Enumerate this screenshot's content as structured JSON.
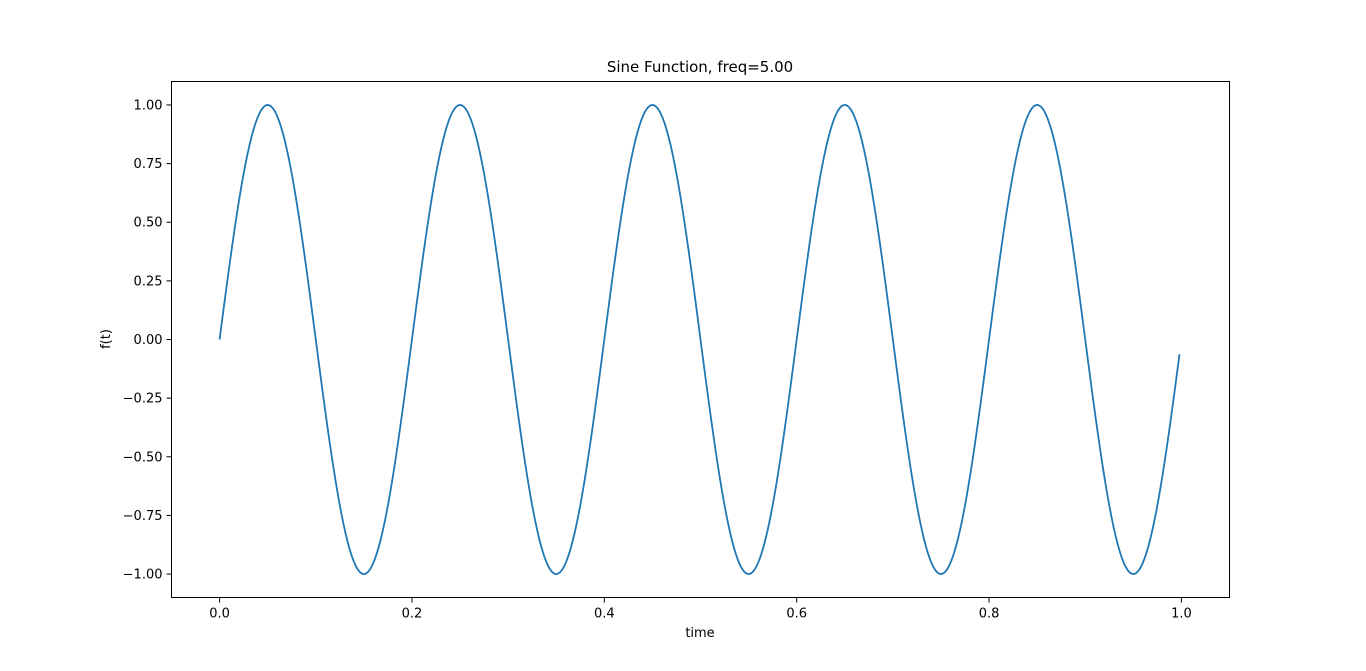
{
  "chart_data": {
    "type": "line",
    "title": "Sine Function, freq=5.00",
    "xlabel": "time",
    "ylabel": "f(t)",
    "xlim": [
      -0.05,
      1.05
    ],
    "ylim": [
      -1.1,
      1.1
    ],
    "xticks": [
      0.0,
      0.2,
      0.4,
      0.6,
      0.8,
      1.0
    ],
    "xtick_labels": [
      "0.0",
      "0.2",
      "0.4",
      "0.6",
      "0.8",
      "1.0"
    ],
    "yticks": [
      -1.0,
      -0.75,
      -0.5,
      -0.25,
      0.0,
      0.25,
      0.5,
      0.75,
      1.0
    ],
    "ytick_labels": [
      "−1.00",
      "−0.75",
      "−0.50",
      "−0.25",
      "0.00",
      "0.25",
      "0.50",
      "0.75",
      "1.00"
    ],
    "grid": false,
    "series": [
      {
        "function": "sin(2*pi*5*t)",
        "frequency": 5.0,
        "x_range": [
          0.0,
          0.998
        ],
        "color": "#1f77b4"
      }
    ]
  }
}
